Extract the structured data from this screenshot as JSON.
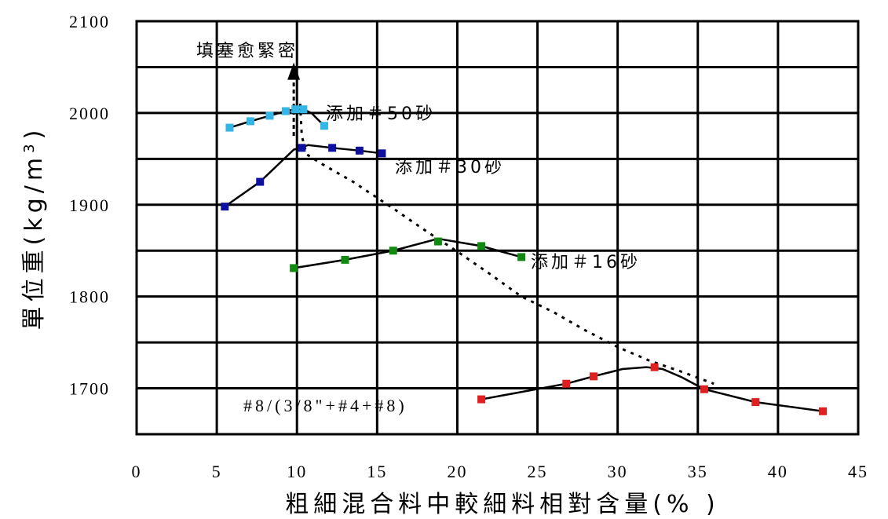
{
  "chart_data": {
    "type": "line",
    "xlabel": "粗細混合料中較細料相對含量(% )",
    "ylabel": "單位重(kg/m",
    "ylabel_sup": "3",
    "ylabel_close": ")",
    "xlim": [
      0,
      45
    ],
    "ylim": [
      1650,
      2100
    ],
    "x_ticks": [
      "0",
      "5",
      "10",
      "15",
      "20",
      "25",
      "30",
      "35",
      "40",
      "45"
    ],
    "y_ticks": [
      "1700",
      "1800",
      "1900",
      "2000",
      "2100"
    ],
    "grid": true,
    "series": [
      {
        "name": "添加＃50砂",
        "color": "#33b5e5",
        "marker_x": [
          5.8,
          7.1,
          8.3,
          9.3,
          9.9,
          10.4,
          11.7
        ],
        "marker_y": [
          1984,
          1991,
          1997,
          2002,
          2004,
          2004,
          1986
        ],
        "line_x": [
          5.8,
          7.1,
          8.3,
          9.3,
          9.9,
          10.4,
          10.9,
          11.7
        ],
        "line_y": [
          1984,
          1991,
          1997,
          2002,
          2004,
          2004,
          2000,
          1986
        ]
      },
      {
        "name": "添加＃30砂",
        "color": "#1010a0",
        "marker_x": [
          5.5,
          7.7,
          10.3,
          12.2,
          13.9,
          15.3
        ],
        "marker_y": [
          1898,
          1925,
          1962,
          1962,
          1959,
          1956
        ],
        "line_x": [
          5.5,
          7.7,
          9.8,
          10.7,
          12.2,
          13.9,
          15.3
        ],
        "line_y": [
          1898,
          1925,
          1960,
          1965,
          1962,
          1959,
          1956
        ]
      },
      {
        "name": "添加＃16砂",
        "color": "#128a12",
        "marker_x": [
          9.8,
          13.0,
          16.0,
          18.8,
          21.5,
          24.0
        ],
        "marker_y": [
          1831,
          1840,
          1850,
          1860,
          1855,
          1843
        ],
        "line_x": [
          9.8,
          13.0,
          16.0,
          18.8,
          21.5,
          24.0
        ],
        "line_y": [
          1831,
          1840,
          1850,
          1863,
          1855,
          1843
        ]
      },
      {
        "name": "#8/(3/8\"+#4+#8)",
        "color": "#e02020",
        "marker_x": [
          21.5,
          26.8,
          28.5,
          32.3,
          35.4,
          38.6,
          42.8
        ],
        "marker_y": [
          1688,
          1705,
          1713,
          1723,
          1699,
          1685,
          1675
        ],
        "line_x": [
          21.5,
          26.8,
          28.5,
          30.3,
          31.8,
          32.8,
          34.0,
          35.4,
          38.6,
          42.8
        ],
        "line_y": [
          1688,
          1705,
          1713,
          1721,
          1723,
          1721,
          1712,
          1699,
          1685,
          1675
        ]
      }
    ],
    "trend": {
      "x": [
        10.2,
        10.3,
        10.6,
        11.5,
        13.5,
        16.0,
        18.0,
        20.0,
        22.0,
        24.0,
        26.0,
        28.0,
        30.0,
        32.0,
        34.0,
        36.0
      ],
      "y": [
        2010,
        1975,
        1955,
        1945,
        1925,
        1896,
        1872,
        1849,
        1825,
        1800,
        1783,
        1763,
        1745,
        1730,
        1718,
        1705
      ]
    },
    "arrow": {
      "x": 9.8,
      "y_from": 1975,
      "y_to": 2055
    },
    "annotations": {
      "densify": "填塞愈緊密",
      "s50": "添加＃50砂",
      "s30": "添加＃30砂",
      "s16": "添加＃16砂",
      "s8": "#8/(3/8\"+#4+#8)"
    }
  }
}
